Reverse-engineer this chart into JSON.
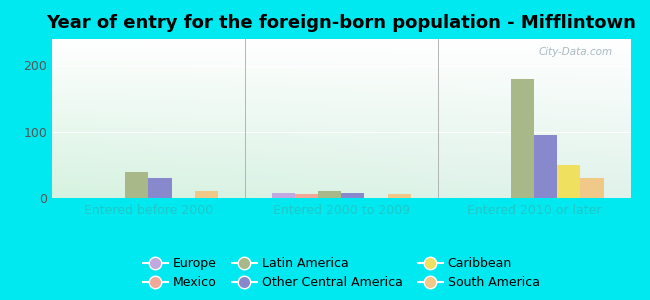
{
  "title": "Year of entry for the foreign-born population - Mifflintown",
  "categories": [
    "Entered before 2000",
    "Entered 2000 to 2009",
    "Entered 2010 or later"
  ],
  "series": {
    "Europe": [
      0,
      8,
      0
    ],
    "Mexico": [
      0,
      6,
      0
    ],
    "Latin America": [
      40,
      10,
      180
    ],
    "Other Central America": [
      30,
      8,
      95
    ],
    "Caribbean": [
      0,
      0,
      50
    ],
    "South America": [
      10,
      6,
      30
    ]
  },
  "colors": {
    "Europe": "#c0a8e0",
    "Mexico": "#f0a898",
    "Latin America": "#a8b888",
    "Other Central America": "#8888cc",
    "Caribbean": "#f0e060",
    "South America": "#f0c888"
  },
  "background_color": "#00e8f0",
  "ylim": [
    0,
    240
  ],
  "yticks": [
    0,
    100,
    200
  ],
  "watermark": "City-Data.com",
  "title_fontsize": 13,
  "tick_fontsize": 9,
  "legend_fontsize": 9,
  "bar_width": 0.12,
  "group_positions": [
    1,
    2,
    3
  ]
}
